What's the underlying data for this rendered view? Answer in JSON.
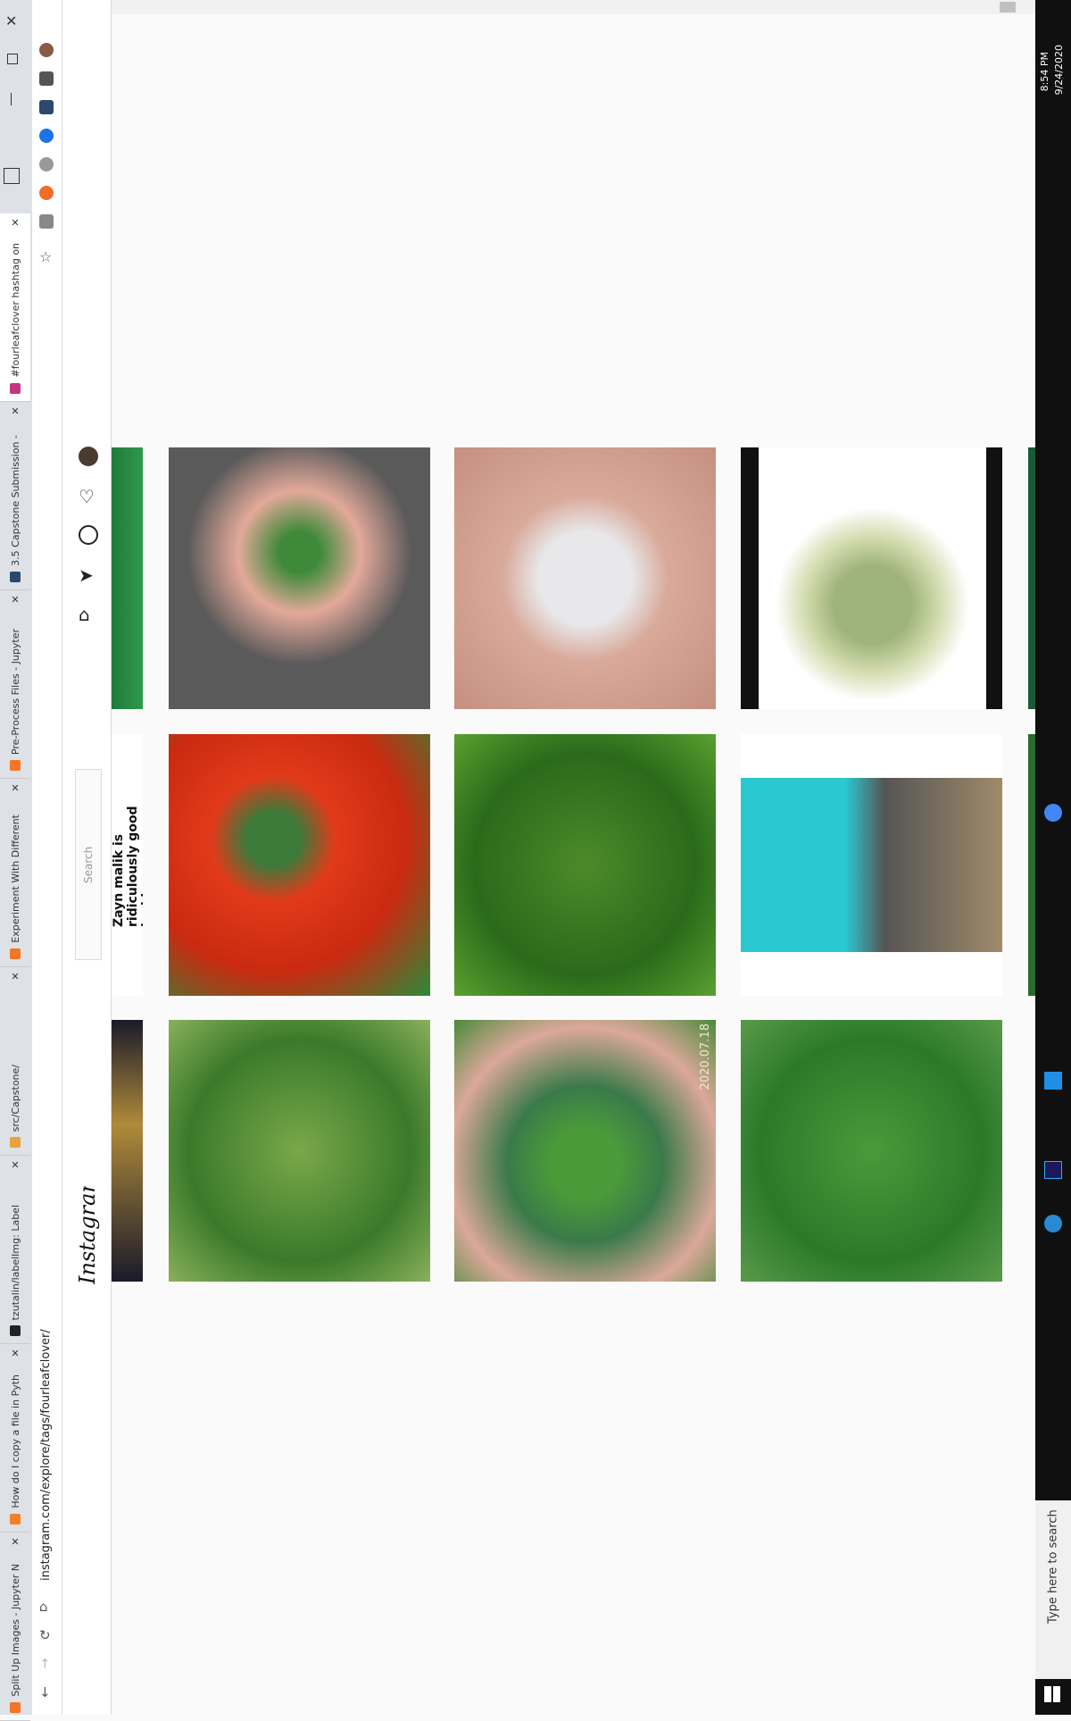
{
  "browser": {
    "tabs": [
      "#fourleafclover hashtag on",
      "3.5 Capstone Submission -",
      "Pre-Process Files - Jupyter",
      "Experiment With Different",
      "src/Capstone/",
      "tzutalin/labelImg: Label",
      "How do I copy a file in Pyth",
      "Split Up Images - Jupyter N"
    ],
    "url": "instagram.com/explore/tags/fourleafclover/"
  },
  "instagram": {
    "logo": "Instagram",
    "search": "Search",
    "caption": "Zayn malik is ridiculously good looking",
    "photo_stamp": "2020.07.18"
  },
  "taskbar": {
    "time": "8:54 PM",
    "date": "9/24/2020",
    "search": "Type here to search"
  }
}
